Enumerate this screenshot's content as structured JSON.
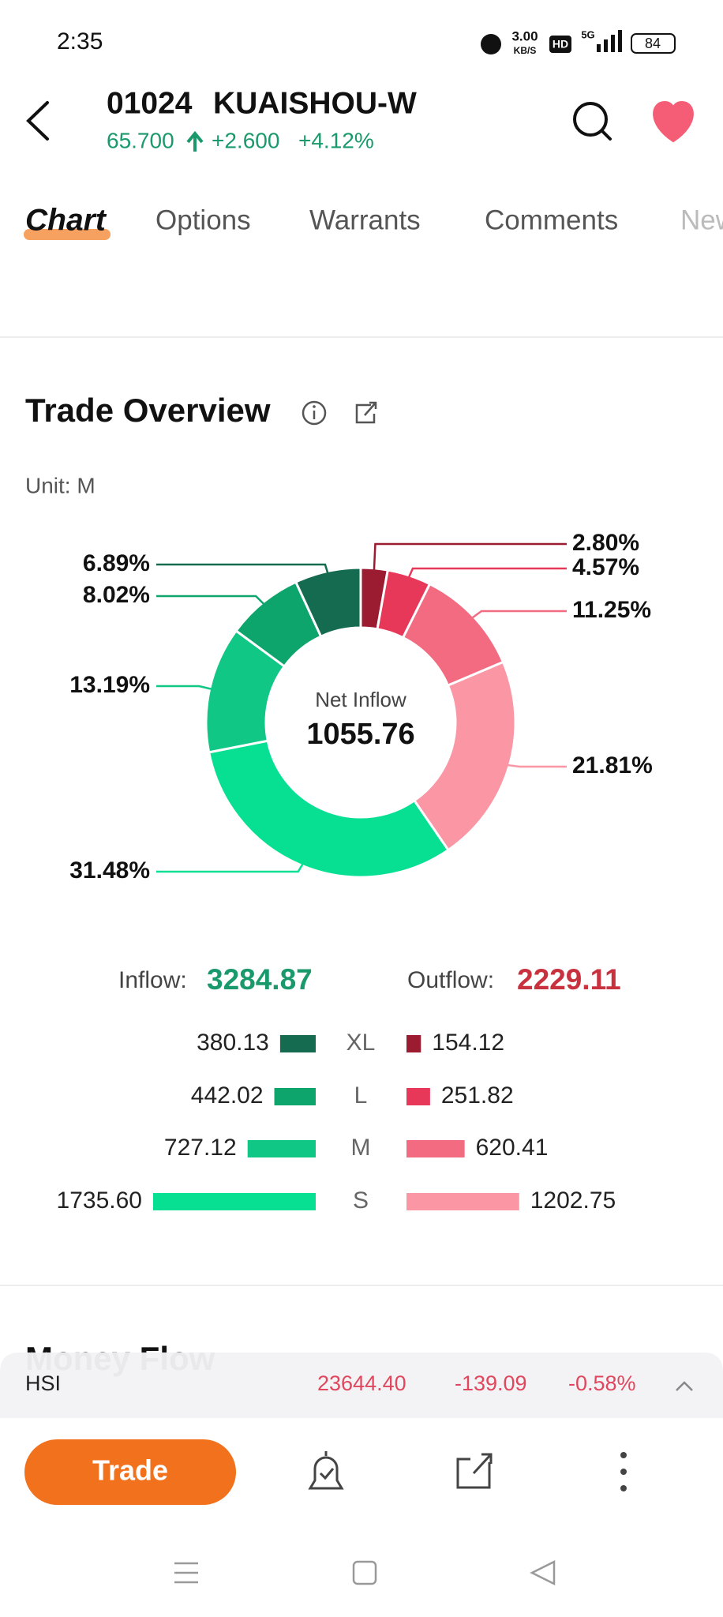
{
  "status_bar": {
    "time": "2:35",
    "speed": "3.00",
    "speed_unit": "KB/S",
    "hd": "HD",
    "network": "5G",
    "battery": "84"
  },
  "header": {
    "code": "01024",
    "name": "KUAISHOU-W",
    "price": "65.700",
    "change": "+2.600",
    "change_pct": "+4.12%"
  },
  "tabs": [
    "Chart",
    "Options",
    "Warrants",
    "Comments",
    "News"
  ],
  "section": {
    "title": "Trade Overview",
    "unit": "Unit: M"
  },
  "chart_data": {
    "type": "pie",
    "center_label": "Net Inflow",
    "center_value": 1055.76,
    "values": [
      2.8,
      4.57,
      11.25,
      21.81,
      31.48,
      13.19,
      8.02,
      6.89
    ],
    "value_labels": [
      "2.80%",
      "4.57%",
      "11.25%",
      "21.81%",
      "31.48%",
      "13.19%",
      "8.02%",
      "6.89%"
    ],
    "colors": [
      "#9b1c31",
      "#e8385a",
      "#f26b80",
      "#fb96a5",
      "#07e092",
      "#10c785",
      "#0ea56d",
      "#146b50"
    ]
  },
  "flows": {
    "inflow_label": "Inflow:",
    "inflow": 3284.87,
    "outflow_label": "Outflow:",
    "outflow": 2229.11,
    "sizes": [
      "XL",
      "L",
      "M",
      "S"
    ],
    "inflow_values": [
      380.13,
      442.02,
      727.12,
      1735.6
    ],
    "inflow_labels": [
      "380.13",
      "442.02",
      "727.12",
      "1735.60"
    ],
    "outflow_values": [
      154.12,
      251.82,
      620.41,
      1202.75
    ],
    "outflow_labels": [
      "154.12",
      "251.82",
      "620.41",
      "1202.75"
    ],
    "inflow_colors": [
      "#146b50",
      "#0ea56d",
      "#10c785",
      "#07e092"
    ],
    "outflow_colors": [
      "#9b1c31",
      "#e8385a",
      "#f26b80",
      "#fb96a5"
    ]
  },
  "next_section": {
    "title": "Money Flow"
  },
  "index_bar": {
    "name": "HSI",
    "value": "23644.40",
    "change": "-139.09",
    "change_pct": "-0.58%"
  },
  "actions": {
    "trade": "Trade"
  }
}
